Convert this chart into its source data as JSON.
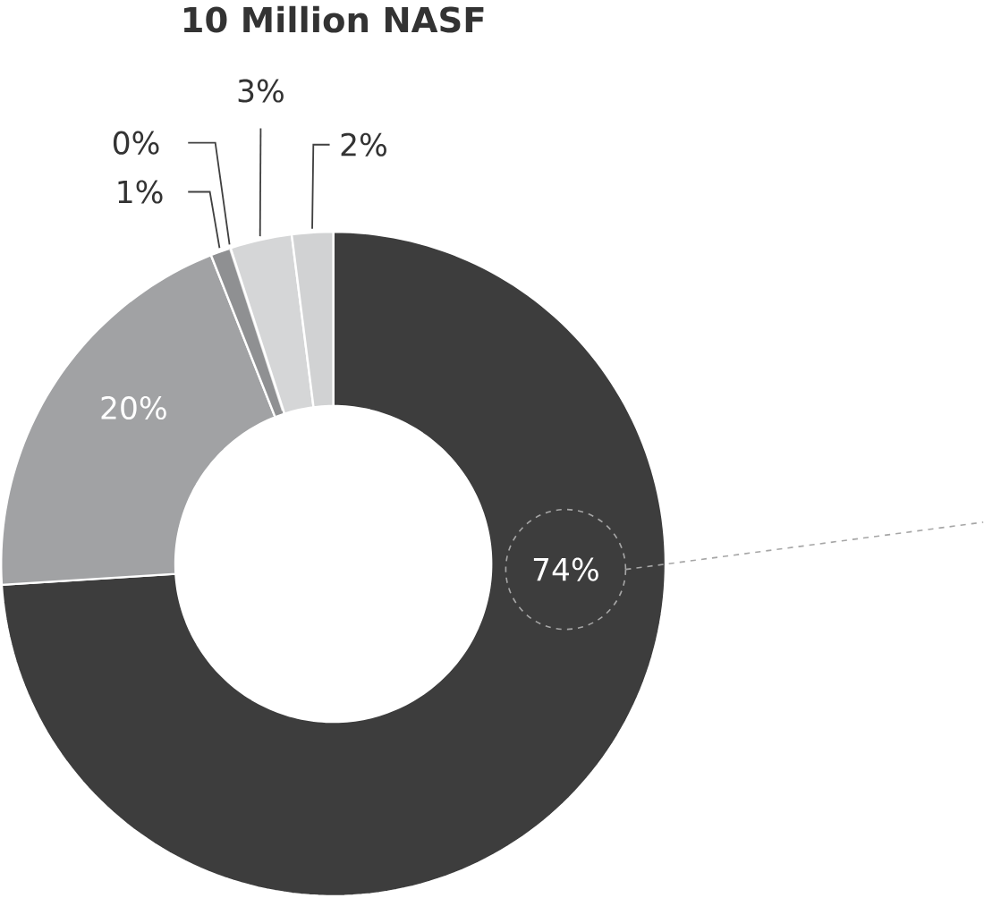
{
  "chart_data": {
    "type": "donut",
    "title": "10 Million NASF",
    "categories": [
      null,
      null,
      null,
      null,
      null,
      null
    ],
    "values": [
      74,
      20,
      1,
      0,
      3,
      2
    ],
    "colors": [
      "#3d3d3d",
      "#a1a2a4",
      "#8f9092",
      "#e4e4e4",
      "#d5d6d7",
      "#d1d2d3"
    ],
    "value_labels": [
      "74%",
      "20%",
      "1%",
      "0%",
      "3%",
      "2%"
    ]
  }
}
